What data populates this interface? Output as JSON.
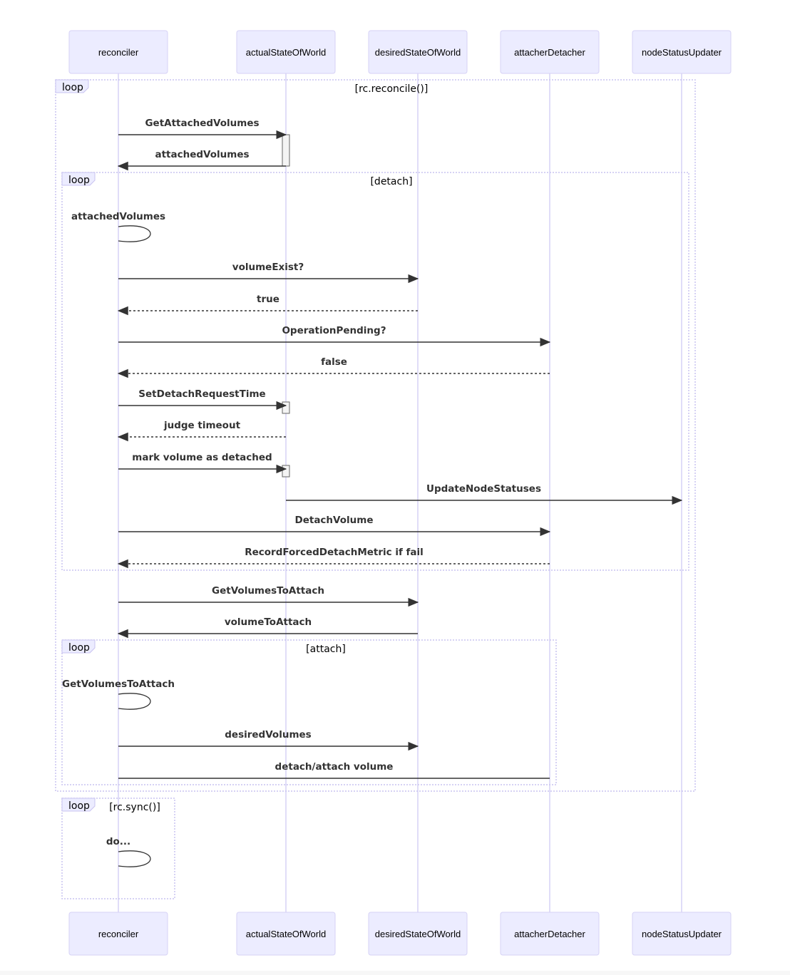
{
  "participants": [
    "reconciler",
    "actualStateOfWorld",
    "desiredStateOfWorld",
    "attacherDetacher",
    "nodeStatusUpdater"
  ],
  "colors": {
    "actor_fill": "#ECECFF",
    "actor_stroke": "#D6D2F5",
    "lifeline": "#D6D2F5",
    "loop_border": "#C9C3F0",
    "message": "#333333"
  },
  "loops": [
    {
      "label": "loop",
      "condition": "[rc.reconcile()]"
    },
    {
      "label": "loop",
      "condition": "[detach]"
    },
    {
      "label": "loop",
      "condition": "[attach]"
    },
    {
      "label": "loop",
      "condition": "[rc.sync()]"
    }
  ],
  "messages": [
    {
      "from": "reconciler",
      "to": "actualStateOfWorld",
      "text": "GetAttachedVolumes",
      "style": "solid",
      "arrow": true
    },
    {
      "from": "actualStateOfWorld",
      "to": "reconciler",
      "text": "attachedVolumes",
      "style": "solid",
      "arrow": true
    },
    {
      "from": "reconciler",
      "to": "reconciler",
      "text": "attachedVolumes",
      "style": "solid",
      "arrow": false
    },
    {
      "from": "reconciler",
      "to": "desiredStateOfWorld",
      "text": "volumeExist?",
      "style": "solid",
      "arrow": true
    },
    {
      "from": "desiredStateOfWorld",
      "to": "reconciler",
      "text": "true",
      "style": "dashed",
      "arrow": true
    },
    {
      "from": "reconciler",
      "to": "attacherDetacher",
      "text": "OperationPending?",
      "style": "solid",
      "arrow": true
    },
    {
      "from": "attacherDetacher",
      "to": "reconciler",
      "text": "false",
      "style": "dashed",
      "arrow": true
    },
    {
      "from": "reconciler",
      "to": "actualStateOfWorld",
      "text": "SetDetachRequestTime",
      "style": "solid",
      "arrow": true
    },
    {
      "from": "actualStateOfWorld",
      "to": "reconciler",
      "text": "judge timeout",
      "style": "dashed",
      "arrow": true
    },
    {
      "from": "reconciler",
      "to": "actualStateOfWorld",
      "text": "mark volume as detached",
      "style": "solid",
      "arrow": true
    },
    {
      "from": "actualStateOfWorld",
      "to": "nodeStatusUpdater",
      "text": "UpdateNodeStatuses",
      "style": "solid",
      "arrow": true
    },
    {
      "from": "reconciler",
      "to": "attacherDetacher",
      "text": "DetachVolume",
      "style": "solid",
      "arrow": true
    },
    {
      "from": "attacherDetacher",
      "to": "reconciler",
      "text": "RecordForcedDetachMetric if fail",
      "style": "dashed",
      "arrow": true
    },
    {
      "from": "reconciler",
      "to": "desiredStateOfWorld",
      "text": "GetVolumesToAttach",
      "style": "solid",
      "arrow": true
    },
    {
      "from": "desiredStateOfWorld",
      "to": "reconciler",
      "text": "volumeToAttach",
      "style": "solid",
      "arrow": true
    },
    {
      "from": "reconciler",
      "to": "reconciler",
      "text": "GetVolumesToAttach",
      "style": "solid",
      "arrow": false
    },
    {
      "from": "reconciler",
      "to": "desiredStateOfWorld",
      "text": "desiredVolumes",
      "style": "solid",
      "arrow": true
    },
    {
      "from": "reconciler",
      "to": "attacherDetacher",
      "text": "detach/attach volume",
      "style": "solid",
      "arrow": false
    },
    {
      "from": "reconciler",
      "to": "reconciler",
      "text": "do...",
      "style": "solid",
      "arrow": false
    }
  ]
}
